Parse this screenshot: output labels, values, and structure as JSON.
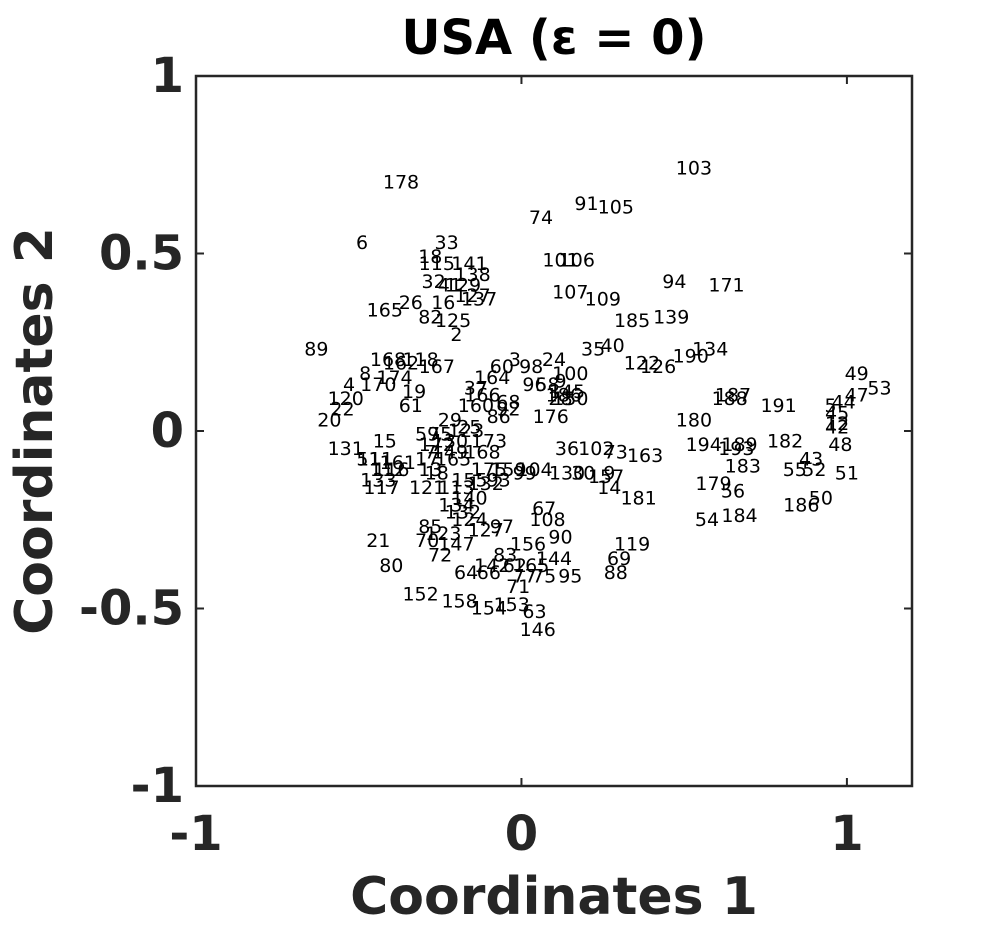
{
  "chart_data": {
    "type": "scatter",
    "title": "USA (ε = 0)",
    "xlabel": "Coordinates 1",
    "ylabel": "Coordinates 2",
    "xlim": [
      -1,
      1.2
    ],
    "ylim": [
      -1,
      1
    ],
    "xticks": [
      -1,
      0,
      1
    ],
    "xtick_labels": [
      "-1",
      "0",
      "1"
    ],
    "yticks": [
      -1,
      -0.5,
      0,
      0.5,
      1
    ],
    "ytick_labels": [
      "-1",
      "-0.5",
      "0",
      "0.5",
      "1"
    ],
    "grid": false,
    "marker": "text-label",
    "points": [
      {
        "label": "103",
        "x": 0.53,
        "y": 0.74
      },
      {
        "label": "178",
        "x": -0.37,
        "y": 0.7
      },
      {
        "label": "91",
        "x": 0.2,
        "y": 0.64
      },
      {
        "label": "105",
        "x": 0.29,
        "y": 0.63
      },
      {
        "label": "74",
        "x": 0.06,
        "y": 0.6
      },
      {
        "label": "6",
        "x": -0.49,
        "y": 0.53
      },
      {
        "label": "33",
        "x": -0.23,
        "y": 0.53
      },
      {
        "label": "18",
        "x": -0.28,
        "y": 0.49
      },
      {
        "label": "115",
        "x": -0.26,
        "y": 0.47
      },
      {
        "label": "141",
        "x": -0.16,
        "y": 0.47
      },
      {
        "label": "101",
        "x": 0.12,
        "y": 0.48
      },
      {
        "label": "106",
        "x": 0.17,
        "y": 0.48
      },
      {
        "label": "138",
        "x": -0.15,
        "y": 0.44
      },
      {
        "label": "94",
        "x": 0.47,
        "y": 0.42
      },
      {
        "label": "171",
        "x": 0.63,
        "y": 0.41
      },
      {
        "label": "32",
        "x": -0.27,
        "y": 0.42
      },
      {
        "label": "41",
        "x": -0.22,
        "y": 0.41
      },
      {
        "label": "129",
        "x": -0.18,
        "y": 0.41
      },
      {
        "label": "107",
        "x": 0.15,
        "y": 0.39
      },
      {
        "label": "109",
        "x": 0.25,
        "y": 0.37
      },
      {
        "label": "26",
        "x": -0.34,
        "y": 0.36
      },
      {
        "label": "16",
        "x": -0.24,
        "y": 0.36
      },
      {
        "label": "127",
        "x": -0.15,
        "y": 0.38
      },
      {
        "label": "137",
        "x": -0.13,
        "y": 0.37
      },
      {
        "label": "165",
        "x": -0.42,
        "y": 0.34
      },
      {
        "label": "82",
        "x": -0.28,
        "y": 0.32
      },
      {
        "label": "125",
        "x": -0.21,
        "y": 0.31
      },
      {
        "label": "185",
        "x": 0.34,
        "y": 0.31
      },
      {
        "label": "139",
        "x": 0.46,
        "y": 0.32
      },
      {
        "label": "2",
        "x": -0.2,
        "y": 0.27
      },
      {
        "label": "89",
        "x": -0.63,
        "y": 0.23
      },
      {
        "label": "35",
        "x": 0.22,
        "y": 0.23
      },
      {
        "label": "40",
        "x": 0.28,
        "y": 0.24
      },
      {
        "label": "134",
        "x": 0.58,
        "y": 0.23
      },
      {
        "label": "190",
        "x": 0.52,
        "y": 0.21
      },
      {
        "label": "122",
        "x": 0.37,
        "y": 0.19
      },
      {
        "label": "126",
        "x": 0.42,
        "y": 0.18
      },
      {
        "label": "168",
        "x": -0.41,
        "y": 0.2
      },
      {
        "label": "162",
        "x": -0.37,
        "y": 0.19
      },
      {
        "label": "118",
        "x": -0.31,
        "y": 0.2
      },
      {
        "label": "167",
        "x": -0.26,
        "y": 0.18
      },
      {
        "label": "3",
        "x": -0.02,
        "y": 0.2
      },
      {
        "label": "60",
        "x": -0.06,
        "y": 0.18
      },
      {
        "label": "98",
        "x": 0.03,
        "y": 0.18
      },
      {
        "label": "24",
        "x": 0.1,
        "y": 0.2
      },
      {
        "label": "100",
        "x": 0.15,
        "y": 0.16
      },
      {
        "label": "164",
        "x": -0.09,
        "y": 0.15
      },
      {
        "label": "8",
        "x": -0.48,
        "y": 0.16
      },
      {
        "label": "174",
        "x": -0.39,
        "y": 0.15
      },
      {
        "label": "49",
        "x": 1.03,
        "y": 0.16
      },
      {
        "label": "53",
        "x": 1.1,
        "y": 0.12
      },
      {
        "label": "47",
        "x": 1.03,
        "y": 0.1
      },
      {
        "label": "44",
        "x": 0.99,
        "y": 0.08
      },
      {
        "label": "4",
        "x": -0.53,
        "y": 0.13
      },
      {
        "label": "170",
        "x": -0.44,
        "y": 0.13
      },
      {
        "label": "37",
        "x": -0.14,
        "y": 0.12
      },
      {
        "label": "96",
        "x": 0.04,
        "y": 0.13
      },
      {
        "label": "58",
        "x": 0.08,
        "y": 0.13
      },
      {
        "label": "9",
        "x": 0.12,
        "y": 0.14
      },
      {
        "label": "19",
        "x": -0.33,
        "y": 0.11
      },
      {
        "label": "120",
        "x": -0.54,
        "y": 0.09
      },
      {
        "label": "166",
        "x": -0.12,
        "y": 0.1
      },
      {
        "label": "186",
        "x": 0.13,
        "y": 0.1
      },
      {
        "label": "145",
        "x": 0.14,
        "y": 0.11
      },
      {
        "label": "187",
        "x": 0.65,
        "y": 0.1
      },
      {
        "label": "188",
        "x": 0.64,
        "y": 0.09
      },
      {
        "label": "28",
        "x": 0.12,
        "y": 0.09
      },
      {
        "label": "150",
        "x": 0.15,
        "y": 0.09
      },
      {
        "label": "68",
        "x": -0.04,
        "y": 0.08
      },
      {
        "label": "191",
        "x": 0.79,
        "y": 0.07
      },
      {
        "label": "5",
        "x": 0.95,
        "y": 0.07
      },
      {
        "label": "22",
        "x": -0.55,
        "y": 0.06
      },
      {
        "label": "61",
        "x": -0.34,
        "y": 0.07
      },
      {
        "label": "160",
        "x": -0.14,
        "y": 0.07
      },
      {
        "label": "92",
        "x": -0.04,
        "y": 0.06
      },
      {
        "label": "45",
        "x": 0.97,
        "y": 0.05
      },
      {
        "label": "20",
        "x": -0.59,
        "y": 0.03
      },
      {
        "label": "29",
        "x": -0.22,
        "y": 0.03
      },
      {
        "label": "86",
        "x": -0.07,
        "y": 0.04
      },
      {
        "label": "176",
        "x": 0.09,
        "y": 0.04
      },
      {
        "label": "180",
        "x": 0.53,
        "y": 0.03
      },
      {
        "label": "12",
        "x": 0.97,
        "y": 0.02
      },
      {
        "label": "42",
        "x": 0.97,
        "y": 0.01
      },
      {
        "label": "123",
        "x": -0.17,
        "y": 0.0
      },
      {
        "label": "59",
        "x": -0.29,
        "y": -0.01
      },
      {
        "label": "75",
        "x": -0.25,
        "y": -0.01
      },
      {
        "label": "25",
        "x": -0.16,
        "y": 0.01
      },
      {
        "label": "15",
        "x": -0.42,
        "y": -0.03
      },
      {
        "label": "173",
        "x": -0.1,
        "y": -0.03
      },
      {
        "label": "172",
        "x": -0.26,
        "y": -0.04
      },
      {
        "label": "130",
        "x": -0.22,
        "y": -0.03
      },
      {
        "label": "189",
        "x": 0.67,
        "y": -0.04
      },
      {
        "label": "182",
        "x": 0.81,
        "y": -0.03
      },
      {
        "label": "48",
        "x": 0.98,
        "y": -0.04
      },
      {
        "label": "131",
        "x": -0.54,
        "y": -0.05
      },
      {
        "label": "7",
        "x": -0.28,
        "y": -0.06
      },
      {
        "label": "149",
        "x": -0.22,
        "y": -0.06
      },
      {
        "label": "168",
        "x": -0.12,
        "y": -0.06
      },
      {
        "label": "36",
        "x": 0.14,
        "y": -0.05
      },
      {
        "label": "102",
        "x": 0.23,
        "y": -0.05
      },
      {
        "label": "73",
        "x": 0.29,
        "y": -0.06
      },
      {
        "label": "194",
        "x": 0.56,
        "y": -0.04
      },
      {
        "label": "193",
        "x": 0.66,
        "y": -0.05
      },
      {
        "label": "163",
        "x": 0.38,
        "y": -0.07
      },
      {
        "label": "111",
        "x": -0.45,
        "y": -0.08
      },
      {
        "label": "51",
        "x": -0.47,
        "y": -0.08
      },
      {
        "label": "161",
        "x": -0.38,
        "y": -0.09
      },
      {
        "label": "17",
        "x": -0.29,
        "y": -0.08
      },
      {
        "label": "165",
        "x": -0.21,
        "y": -0.08
      },
      {
        "label": "43",
        "x": 0.89,
        "y": -0.08
      },
      {
        "label": "183",
        "x": 0.68,
        "y": -0.1
      },
      {
        "label": "55",
        "x": 0.84,
        "y": -0.11
      },
      {
        "label": "52",
        "x": 0.9,
        "y": -0.11
      },
      {
        "label": "112",
        "x": -0.41,
        "y": -0.11
      },
      {
        "label": "116",
        "x": -0.4,
        "y": -0.11
      },
      {
        "label": "13",
        "x": -0.28,
        "y": -0.11
      },
      {
        "label": "18",
        "x": -0.26,
        "y": -0.12
      },
      {
        "label": "175",
        "x": -0.1,
        "y": -0.11
      },
      {
        "label": "159",
        "x": -0.04,
        "y": -0.11
      },
      {
        "label": "104",
        "x": 0.04,
        "y": -0.11
      },
      {
        "label": "99",
        "x": 0.01,
        "y": -0.12
      },
      {
        "label": "130",
        "x": 0.14,
        "y": -0.12
      },
      {
        "label": "30",
        "x": 0.19,
        "y": -0.12
      },
      {
        "label": "9",
        "x": 0.27,
        "y": -0.12
      },
      {
        "label": "51",
        "x": 1.0,
        "y": -0.12
      },
      {
        "label": "133",
        "x": -0.44,
        "y": -0.14
      },
      {
        "label": "155",
        "x": -0.16,
        "y": -0.14
      },
      {
        "label": "93",
        "x": -0.07,
        "y": -0.14
      },
      {
        "label": "157",
        "x": 0.26,
        "y": -0.13
      },
      {
        "label": "117",
        "x": -0.43,
        "y": -0.16
      },
      {
        "label": "121",
        "x": -0.29,
        "y": -0.16
      },
      {
        "label": "113",
        "x": -0.2,
        "y": -0.16
      },
      {
        "label": "132",
        "x": -0.11,
        "y": -0.15
      },
      {
        "label": "14",
        "x": 0.27,
        "y": -0.16
      },
      {
        "label": "179",
        "x": 0.59,
        "y": -0.15
      },
      {
        "label": "56",
        "x": 0.65,
        "y": -0.17
      },
      {
        "label": "140",
        "x": -0.16,
        "y": -0.19
      },
      {
        "label": "181",
        "x": 0.36,
        "y": -0.19
      },
      {
        "label": "134",
        "x": -0.2,
        "y": -0.21
      },
      {
        "label": "50",
        "x": 0.92,
        "y": -0.19
      },
      {
        "label": "186",
        "x": 0.86,
        "y": -0.21
      },
      {
        "label": "67",
        "x": 0.07,
        "y": -0.22
      },
      {
        "label": "132",
        "x": -0.18,
        "y": -0.23
      },
      {
        "label": "184",
        "x": 0.67,
        "y": -0.24
      },
      {
        "label": "54",
        "x": 0.57,
        "y": -0.25
      },
      {
        "label": "124",
        "x": -0.16,
        "y": -0.25
      },
      {
        "label": "108",
        "x": 0.08,
        "y": -0.25
      },
      {
        "label": "85",
        "x": -0.28,
        "y": -0.27
      },
      {
        "label": "97",
        "x": -0.06,
        "y": -0.27
      },
      {
        "label": "127",
        "x": -0.11,
        "y": -0.28
      },
      {
        "label": "123",
        "x": -0.24,
        "y": -0.29
      },
      {
        "label": "90",
        "x": 0.12,
        "y": -0.3
      },
      {
        "label": "21",
        "x": -0.44,
        "y": -0.31
      },
      {
        "label": "70",
        "x": -0.29,
        "y": -0.31
      },
      {
        "label": "147",
        "x": -0.2,
        "y": -0.32
      },
      {
        "label": "156",
        "x": 0.02,
        "y": -0.32
      },
      {
        "label": "119",
        "x": 0.34,
        "y": -0.32
      },
      {
        "label": "72",
        "x": -0.25,
        "y": -0.35
      },
      {
        "label": "83",
        "x": -0.05,
        "y": -0.35
      },
      {
        "label": "144",
        "x": 0.1,
        "y": -0.36
      },
      {
        "label": "69",
        "x": 0.3,
        "y": -0.36
      },
      {
        "label": "80",
        "x": -0.4,
        "y": -0.38
      },
      {
        "label": "142",
        "x": -0.09,
        "y": -0.38
      },
      {
        "label": "62",
        "x": -0.02,
        "y": -0.38
      },
      {
        "label": "165",
        "x": 0.03,
        "y": -0.38
      },
      {
        "label": "64",
        "x": -0.17,
        "y": -0.4
      },
      {
        "label": "66",
        "x": -0.1,
        "y": -0.4
      },
      {
        "label": "77",
        "x": 0.01,
        "y": -0.41
      },
      {
        "label": "75",
        "x": 0.07,
        "y": -0.41
      },
      {
        "label": "95",
        "x": 0.15,
        "y": -0.41
      },
      {
        "label": "88",
        "x": 0.29,
        "y": -0.4
      },
      {
        "label": "71",
        "x": -0.01,
        "y": -0.44
      },
      {
        "label": "152",
        "x": -0.31,
        "y": -0.46
      },
      {
        "label": "158",
        "x": -0.19,
        "y": -0.48
      },
      {
        "label": "154",
        "x": -0.1,
        "y": -0.5
      },
      {
        "label": "153",
        "x": -0.03,
        "y": -0.49
      },
      {
        "label": "63",
        "x": 0.04,
        "y": -0.51
      },
      {
        "label": "146",
        "x": 0.05,
        "y": -0.56
      }
    ]
  }
}
